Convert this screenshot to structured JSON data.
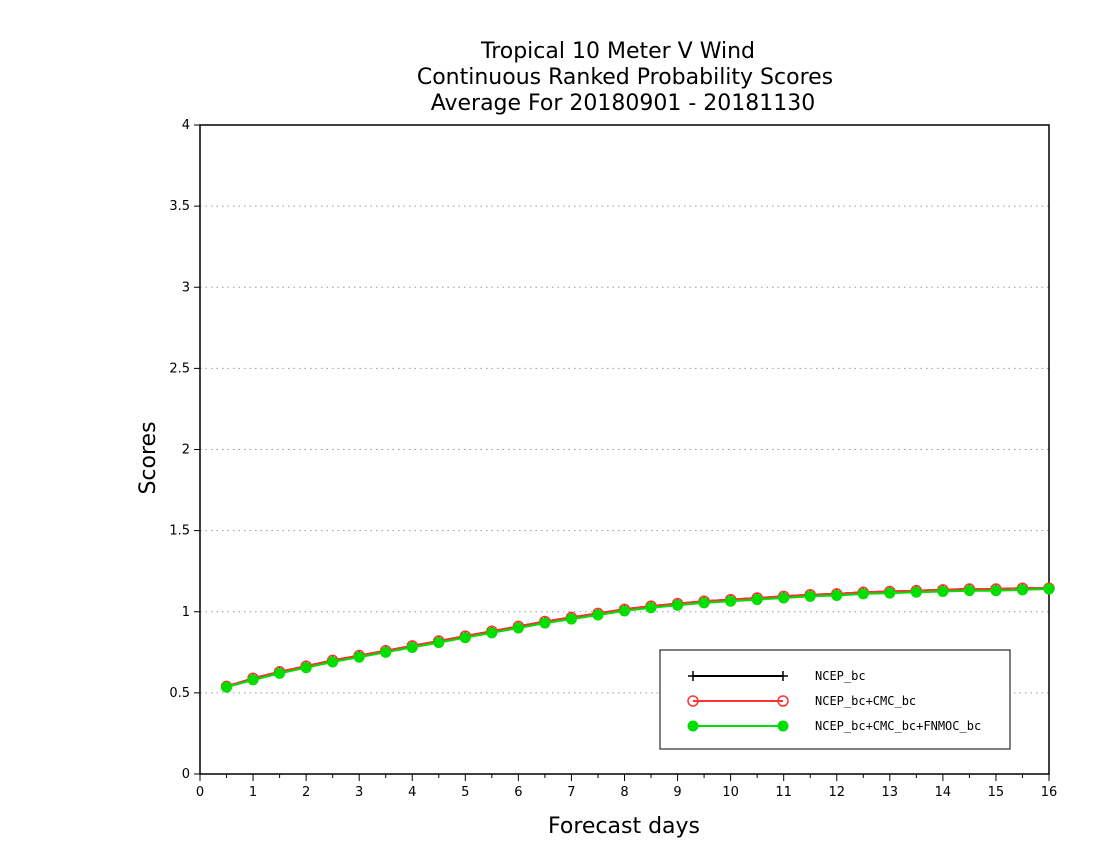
{
  "chart_data": {
    "type": "line",
    "title": [
      "Tropical 10 Meter V Wind",
      "Continuous Ranked Probability Scores",
      "Average For 20180901 - 20181130"
    ],
    "xlabel": "Forecast days",
    "ylabel": "Scores",
    "xlim": [
      0,
      16
    ],
    "ylim": [
      0,
      4
    ],
    "x_ticks": [
      "0",
      "1",
      "2",
      "3",
      "4",
      "5",
      "6",
      "7",
      "8",
      "9",
      "10",
      "11",
      "12",
      "13",
      "14",
      "15",
      "16"
    ],
    "y_ticks": [
      "0",
      "0.5",
      "1",
      "1.5",
      "2",
      "2.5",
      "3",
      "3.5",
      "4"
    ],
    "grid": "horizontal-dotted",
    "legend_position": "bottom-right",
    "x": [
      0.5,
      1,
      1.5,
      2,
      2.5,
      3,
      3.5,
      4,
      4.5,
      5,
      5.5,
      6,
      6.5,
      7,
      7.5,
      8,
      8.5,
      9,
      9.5,
      10,
      10.5,
      11,
      11.5,
      12,
      12.5,
      13,
      13.5,
      14,
      14.5,
      15,
      15.5,
      16
    ],
    "series": [
      {
        "name": "NCEP_bc",
        "color": "#000000",
        "marker": "plus",
        "values": [
          0.54,
          0.59,
          0.63,
          0.665,
          0.7,
          0.73,
          0.76,
          0.79,
          0.82,
          0.85,
          0.88,
          0.91,
          0.94,
          0.965,
          0.99,
          1.015,
          1.035,
          1.05,
          1.065,
          1.075,
          1.085,
          1.095,
          1.105,
          1.11,
          1.12,
          1.125,
          1.13,
          1.135,
          1.14,
          1.14,
          1.145,
          1.145
        ]
      },
      {
        "name": "NCEP_bc+CMC_bc",
        "color": "#ff3333",
        "marker": "open-circle",
        "values": [
          0.54,
          0.59,
          0.63,
          0.665,
          0.7,
          0.73,
          0.76,
          0.79,
          0.82,
          0.85,
          0.88,
          0.91,
          0.94,
          0.965,
          0.99,
          1.015,
          1.035,
          1.05,
          1.065,
          1.075,
          1.085,
          1.095,
          1.105,
          1.11,
          1.12,
          1.125,
          1.13,
          1.135,
          1.14,
          1.14,
          1.145,
          1.145
        ]
      },
      {
        "name": "NCEP_bc+CMC_bc+FNMOC_bc",
        "color": "#00dd00",
        "marker": "filled-circle",
        "values": [
          0.535,
          0.58,
          0.62,
          0.655,
          0.69,
          0.72,
          0.75,
          0.78,
          0.81,
          0.84,
          0.87,
          0.9,
          0.93,
          0.955,
          0.98,
          1.005,
          1.025,
          1.04,
          1.055,
          1.065,
          1.075,
          1.085,
          1.095,
          1.1,
          1.11,
          1.115,
          1.12,
          1.125,
          1.13,
          1.13,
          1.135,
          1.14
        ]
      }
    ]
  }
}
